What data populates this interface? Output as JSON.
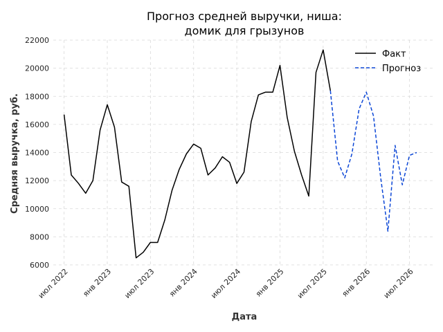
{
  "chart_data": {
    "type": "line",
    "title_line1": "Прогноз средней выручки, ниша:",
    "title_line2": "домик для грызунов",
    "xlabel": "Дата",
    "ylabel": "Средняя выручка, руб.",
    "ylim": [
      6000,
      22000
    ],
    "yticks": [
      6000,
      8000,
      10000,
      12000,
      14000,
      16000,
      18000,
      20000,
      22000
    ],
    "xticks": [
      {
        "label": "июл 2022",
        "month": 0
      },
      {
        "label": "янв 2023",
        "month": 6
      },
      {
        "label": "июл 2023",
        "month": 12
      },
      {
        "label": "янв 2024",
        "month": 18
      },
      {
        "label": "июл 2024",
        "month": 24
      },
      {
        "label": "янв 2025",
        "month": 30
      },
      {
        "label": "июл 2025",
        "month": 36
      },
      {
        "label": "янв 2026",
        "month": 42
      },
      {
        "label": "июл 2026",
        "month": 48
      }
    ],
    "xlim_months": [
      -1.5,
      51.5
    ],
    "grid": true,
    "legend_position": "top-right",
    "series": [
      {
        "name": "Факт",
        "color": "#000000",
        "style": "solid",
        "x_months": [
          0,
          1,
          2,
          3,
          4,
          5,
          6,
          7,
          8,
          9,
          10,
          11,
          12,
          13,
          14,
          15,
          16,
          17,
          18,
          19,
          20,
          21,
          22,
          23,
          24,
          25,
          26,
          27,
          28,
          29,
          30,
          31,
          32,
          33,
          34,
          35,
          36,
          37
        ],
        "values": [
          16700,
          12400,
          11800,
          11100,
          12000,
          15600,
          17400,
          15800,
          11900,
          11600,
          6500,
          6900,
          7600,
          7600,
          9200,
          11300,
          12800,
          13900,
          14600,
          14300,
          12400,
          12900,
          13700,
          13300,
          11800,
          12600,
          16200,
          18100,
          18300,
          18300,
          20200,
          16500,
          14100,
          12400,
          10900,
          19700,
          21300,
          18400
        ]
      },
      {
        "name": "Прогноз",
        "color": "#0a45d6",
        "style": "dashed",
        "x_months": [
          37,
          38,
          39,
          40,
          41,
          42,
          43,
          44,
          45,
          46,
          47,
          48,
          49
        ],
        "values": [
          18400,
          13400,
          12200,
          13900,
          17100,
          18300,
          16600,
          12200,
          8400,
          14500,
          11700,
          13800,
          14000
        ]
      }
    ]
  }
}
